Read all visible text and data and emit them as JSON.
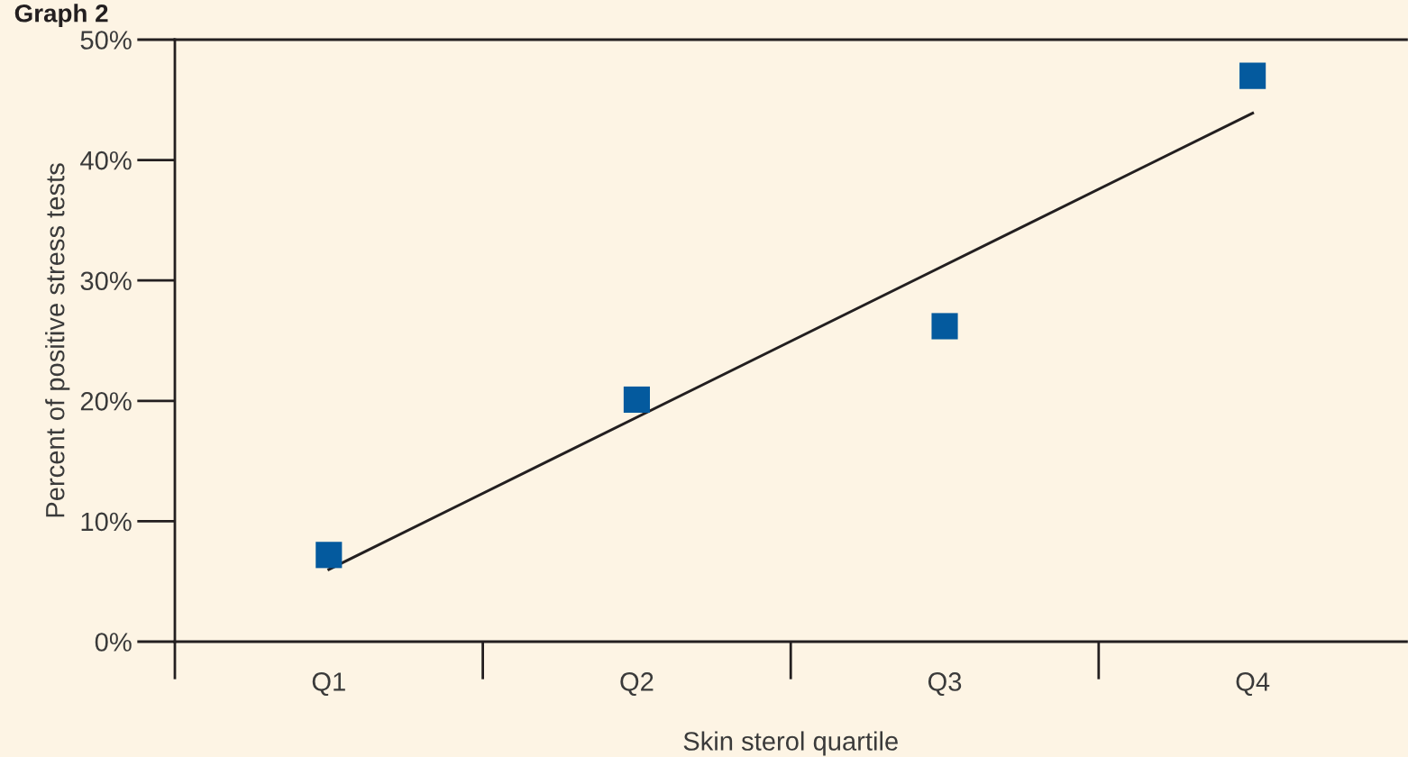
{
  "chart_data": {
    "type": "scatter",
    "title": "Graph 2",
    "xlabel": "Skin sterol quartile",
    "ylabel": "Percent of positive stress tests",
    "categories": [
      "Q1",
      "Q2",
      "Q3",
      "Q4"
    ],
    "series": [
      {
        "color": "#045a9e",
        "marker": "square",
        "values": [
          7.2,
          20.1,
          26.2,
          47.0
        ]
      },
      {
        "type": "line",
        "color": "#231f20",
        "x": [
          "Q1",
          "Q4"
        ],
        "values": [
          6.0,
          43.9
        ],
        "line_style": "solid",
        "marker": "none"
      }
    ],
    "ylim": [
      0,
      50
    ],
    "yticks": [
      {
        "value": 0,
        "label": "0%"
      },
      {
        "value": 10,
        "label": "10%"
      },
      {
        "value": 20,
        "label": "20%"
      },
      {
        "value": 30,
        "label": "30%"
      },
      {
        "value": 40,
        "label": "40%"
      },
      {
        "value": 50,
        "label": "50%"
      }
    ],
    "grid": false
  }
}
